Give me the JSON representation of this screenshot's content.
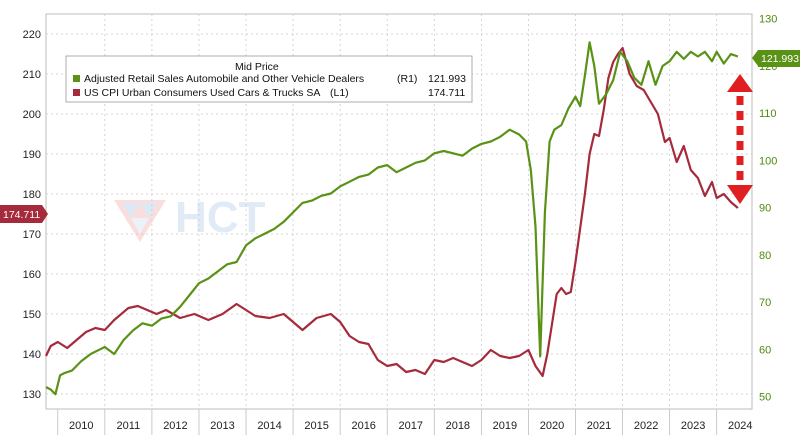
{
  "chart_data": {
    "type": "line",
    "legend": {
      "title": "Mid Price",
      "entries": [
        {
          "name": "Adjusted Retail Sales Automobile and Other Vehicle Dealers",
          "axis": "(R1)",
          "last": "121.993",
          "color": "#5a9216"
        },
        {
          "name": "US CPI Urban Consumers Used Cars & Trucks SA",
          "axis": "(L1)",
          "last": "174.711",
          "color": "#a52a3c"
        }
      ],
      "placement": "top-left"
    },
    "x_tick_labels": [
      "2010",
      "2011",
      "2012",
      "2013",
      "2014",
      "2015",
      "2016",
      "2017",
      "2018",
      "2019",
      "2020",
      "2021",
      "2022",
      "2023",
      "2024"
    ],
    "x_range": [
      2009.75,
      2024.75
    ],
    "left_axis": {
      "ticks": [
        "130",
        "140",
        "150",
        "160",
        "170",
        "180",
        "190",
        "200",
        "210",
        "220"
      ],
      "range": [
        127,
        225
      ]
    },
    "right_axis": {
      "ticks": [
        "50",
        "60",
        "70",
        "80",
        "90",
        "100",
        "110",
        "120",
        "130"
      ],
      "range": [
        48,
        131
      ]
    },
    "last_value_tags": {
      "left": "174.711",
      "right": "121.993"
    },
    "watermark": "HCT",
    "series": [
      {
        "name": "US CPI Urban Consumers Used Cars & Trucks SA",
        "axis": "left",
        "color": "#a52a3c",
        "x": [
          2009.75,
          2009.85,
          2010.0,
          2010.2,
          2010.4,
          2010.6,
          2010.8,
          2011.0,
          2011.2,
          2011.5,
          2011.7,
          2011.9,
          2012.1,
          2012.3,
          2012.6,
          2012.9,
          2013.2,
          2013.5,
          2013.8,
          2014.0,
          2014.2,
          2014.5,
          2014.8,
          2015.0,
          2015.2,
          2015.5,
          2015.8,
          2016.0,
          2016.2,
          2016.4,
          2016.6,
          2016.8,
          2017.0,
          2017.2,
          2017.4,
          2017.6,
          2017.8,
          2018.0,
          2018.2,
          2018.4,
          2018.6,
          2018.8,
          2019.0,
          2019.2,
          2019.4,
          2019.6,
          2019.8,
          2020.0,
          2020.15,
          2020.3,
          2020.4,
          2020.5,
          2020.6,
          2020.7,
          2020.8,
          2020.9,
          2021.0,
          2021.2,
          2021.3,
          2021.4,
          2021.5,
          2021.6,
          2021.7,
          2021.8,
          2021.9,
          2022.0,
          2022.15,
          2022.3,
          2022.45,
          2022.6,
          2022.75,
          2022.9,
          2023.0,
          2023.15,
          2023.3,
          2023.45,
          2023.6,
          2023.75,
          2023.9,
          2024.0,
          2024.15,
          2024.3,
          2024.45
        ],
        "values": [
          139.5,
          142.0,
          143.0,
          141.5,
          143.5,
          145.5,
          146.5,
          146.0,
          148.5,
          151.5,
          152.0,
          151.0,
          150.0,
          151.0,
          149.0,
          150.0,
          148.5,
          150.0,
          152.5,
          151.0,
          149.5,
          149.0,
          150.0,
          148.0,
          146.0,
          149.0,
          150.0,
          148.0,
          144.5,
          143.0,
          142.5,
          138.5,
          137.0,
          137.5,
          135.5,
          136.0,
          135.0,
          138.5,
          138.0,
          139.0,
          138.0,
          137.0,
          138.5,
          141.0,
          139.5,
          139.0,
          139.5,
          141.0,
          137.0,
          134.5,
          140.0,
          147.5,
          155.0,
          156.5,
          155.0,
          155.5,
          163.0,
          180.0,
          190.0,
          195.0,
          194.5,
          201.0,
          209.0,
          213.0,
          215.0,
          216.5,
          210.0,
          207.0,
          206.0,
          203.0,
          200.0,
          193.0,
          194.0,
          188.0,
          192.0,
          186.0,
          184.0,
          179.5,
          183.0,
          179.0,
          180.0,
          178.0,
          176.5
        ]
      },
      {
        "name": "Adjusted Retail Sales Automobile and Other Vehicle Dealers",
        "axis": "right",
        "color": "#5a9216",
        "x": [
          2009.75,
          2009.85,
          2009.95,
          2010.05,
          2010.15,
          2010.3,
          2010.5,
          2010.7,
          2010.9,
          2011.0,
          2011.2,
          2011.4,
          2011.6,
          2011.8,
          2012.0,
          2012.2,
          2012.4,
          2012.6,
          2012.8,
          2013.0,
          2013.2,
          2013.4,
          2013.6,
          2013.8,
          2014.0,
          2014.2,
          2014.4,
          2014.6,
          2014.8,
          2015.0,
          2015.2,
          2015.4,
          2015.6,
          2015.8,
          2016.0,
          2016.2,
          2016.4,
          2016.6,
          2016.8,
          2017.0,
          2017.2,
          2017.4,
          2017.6,
          2017.8,
          2018.0,
          2018.2,
          2018.4,
          2018.6,
          2018.8,
          2019.0,
          2019.2,
          2019.4,
          2019.6,
          2019.8,
          2019.95,
          2020.05,
          2020.15,
          2020.25,
          2020.35,
          2020.45,
          2020.55,
          2020.7,
          2020.85,
          2021.0,
          2021.1,
          2021.2,
          2021.3,
          2021.4,
          2021.5,
          2021.65,
          2021.8,
          2021.95,
          2022.1,
          2022.25,
          2022.4,
          2022.55,
          2022.7,
          2022.85,
          2023.0,
          2023.15,
          2023.3,
          2023.45,
          2023.6,
          2023.75,
          2023.9,
          2024.0,
          2024.15,
          2024.3,
          2024.45
        ],
        "values": [
          52.0,
          51.5,
          50.5,
          54.5,
          55.0,
          55.5,
          57.5,
          59.0,
          60.0,
          60.5,
          59.0,
          62.0,
          64.0,
          65.5,
          65.0,
          66.5,
          67.0,
          69.0,
          71.5,
          74.0,
          75.0,
          76.5,
          78.0,
          78.5,
          82.0,
          83.5,
          84.5,
          85.5,
          87.0,
          89.0,
          91.0,
          91.5,
          92.5,
          93.0,
          94.5,
          95.5,
          96.5,
          97.0,
          98.5,
          99.0,
          97.5,
          98.5,
          99.5,
          100.0,
          101.5,
          102.0,
          101.5,
          101.0,
          102.5,
          103.5,
          104.0,
          105.0,
          106.5,
          105.5,
          104.0,
          98.0,
          86.0,
          58.5,
          89.0,
          104.0,
          106.5,
          107.5,
          111.0,
          113.5,
          111.5,
          118.0,
          125.0,
          120.0,
          112.0,
          114.0,
          117.0,
          123.0,
          121.0,
          117.5,
          116.0,
          121.0,
          116.0,
          120.0,
          121.0,
          123.0,
          121.5,
          123.0,
          122.0,
          123.0,
          121.0,
          123.0,
          120.5,
          122.5,
          122.0
        ]
      }
    ]
  }
}
